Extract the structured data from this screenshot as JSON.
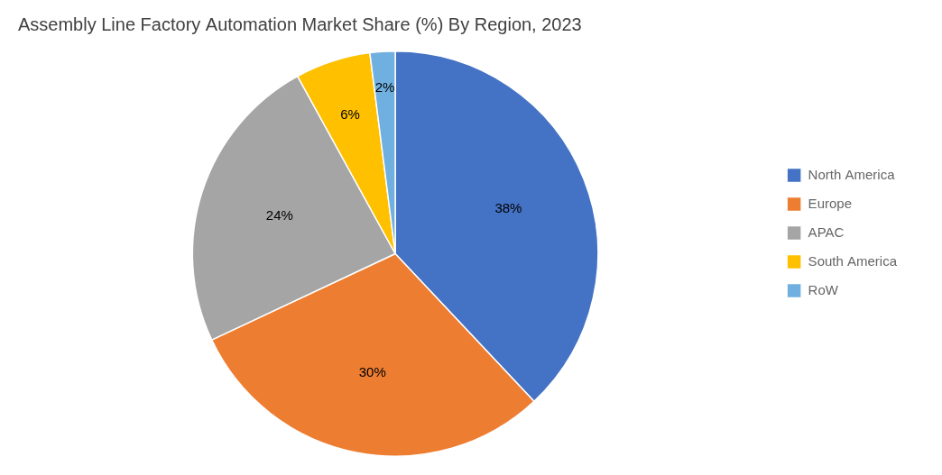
{
  "chart_data": {
    "type": "pie",
    "title": "Assembly Line Factory Automation Market Share (%) By Region, 2023",
    "categories": [
      "North America",
      "Europe",
      "APAC",
      "South America",
      "RoW"
    ],
    "values": [
      38,
      30,
      24,
      6,
      2
    ],
    "value_labels": [
      "38%",
      "30%",
      "24%",
      "6%",
      "2%"
    ],
    "colors": [
      "#4472C4",
      "#ED7D31",
      "#A5A5A5",
      "#FFC000",
      "#70B0E0"
    ],
    "legend": "right",
    "data_labels": true
  }
}
